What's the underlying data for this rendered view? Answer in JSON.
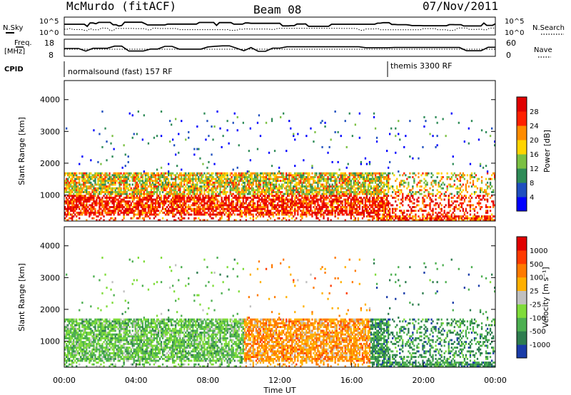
{
  "header": {
    "station": "McMurdo (fitACF)",
    "beam": "Beam 08",
    "date": "07/Nov/2011"
  },
  "status": {
    "n_sky_label": "N.Sky",
    "n_search_label": "N.Search",
    "freq_label_line1": "Freq.",
    "freq_label_line2": "[MHz]",
    "nave_label": "Nave",
    "cpid_label": "CPID",
    "nsky_ticks": [
      "10^5",
      "10^0"
    ],
    "nsearch_ticks": [
      "10^5",
      "10^0"
    ],
    "freq_ticks": [
      "18",
      "8"
    ],
    "nave_ticks": [
      "60",
      "0"
    ],
    "cpid_segments": [
      {
        "label": "normalsound (fast) 157 RF",
        "start_h": 0
      },
      {
        "label": "themis 3300 RF",
        "start_h": 18
      }
    ]
  },
  "chart_data": [
    {
      "type": "heatmap",
      "name": "power",
      "ylabel": "Slant Range [km]",
      "xlabel": "",
      "ylim": [
        180,
        4600
      ],
      "yticks": [
        "1000",
        "2000",
        "3000",
        "4000"
      ],
      "colorbar_label": "Power [dB]",
      "colorbar_ticks": [
        "4",
        "8",
        "12",
        "16",
        "20",
        "24",
        "28"
      ],
      "colorbar_colors": [
        "#0000ff",
        "#1f4fbf",
        "#2e8b57",
        "#7bc043",
        "#ffd400",
        "#ff8c00",
        "#ff2000",
        "#e00000"
      ]
    },
    {
      "type": "heatmap",
      "name": "velocity",
      "ylabel": "Slant Range [km]",
      "xlabel": "Time UT",
      "ylim": [
        180,
        4600
      ],
      "yticks": [
        "1000",
        "2000",
        "3000",
        "4000"
      ],
      "xticks": [
        "00:00",
        "04:00",
        "08:00",
        "12:00",
        "16:00",
        "20:00",
        "00:00"
      ],
      "colorbar_label": "Velocity [m s⁻¹]",
      "colorbar_ticks": [
        "1000",
        "500",
        "100",
        "25",
        "-25",
        "-100",
        "-500",
        "-1000"
      ],
      "colorbar_colors": [
        "#1a3ca8",
        "#2e7d4f",
        "#4caf50",
        "#7fdc3a",
        "#c0c0c0",
        "#ffb000",
        "#ff7a00",
        "#ff3a00",
        "#e00000"
      ]
    }
  ]
}
